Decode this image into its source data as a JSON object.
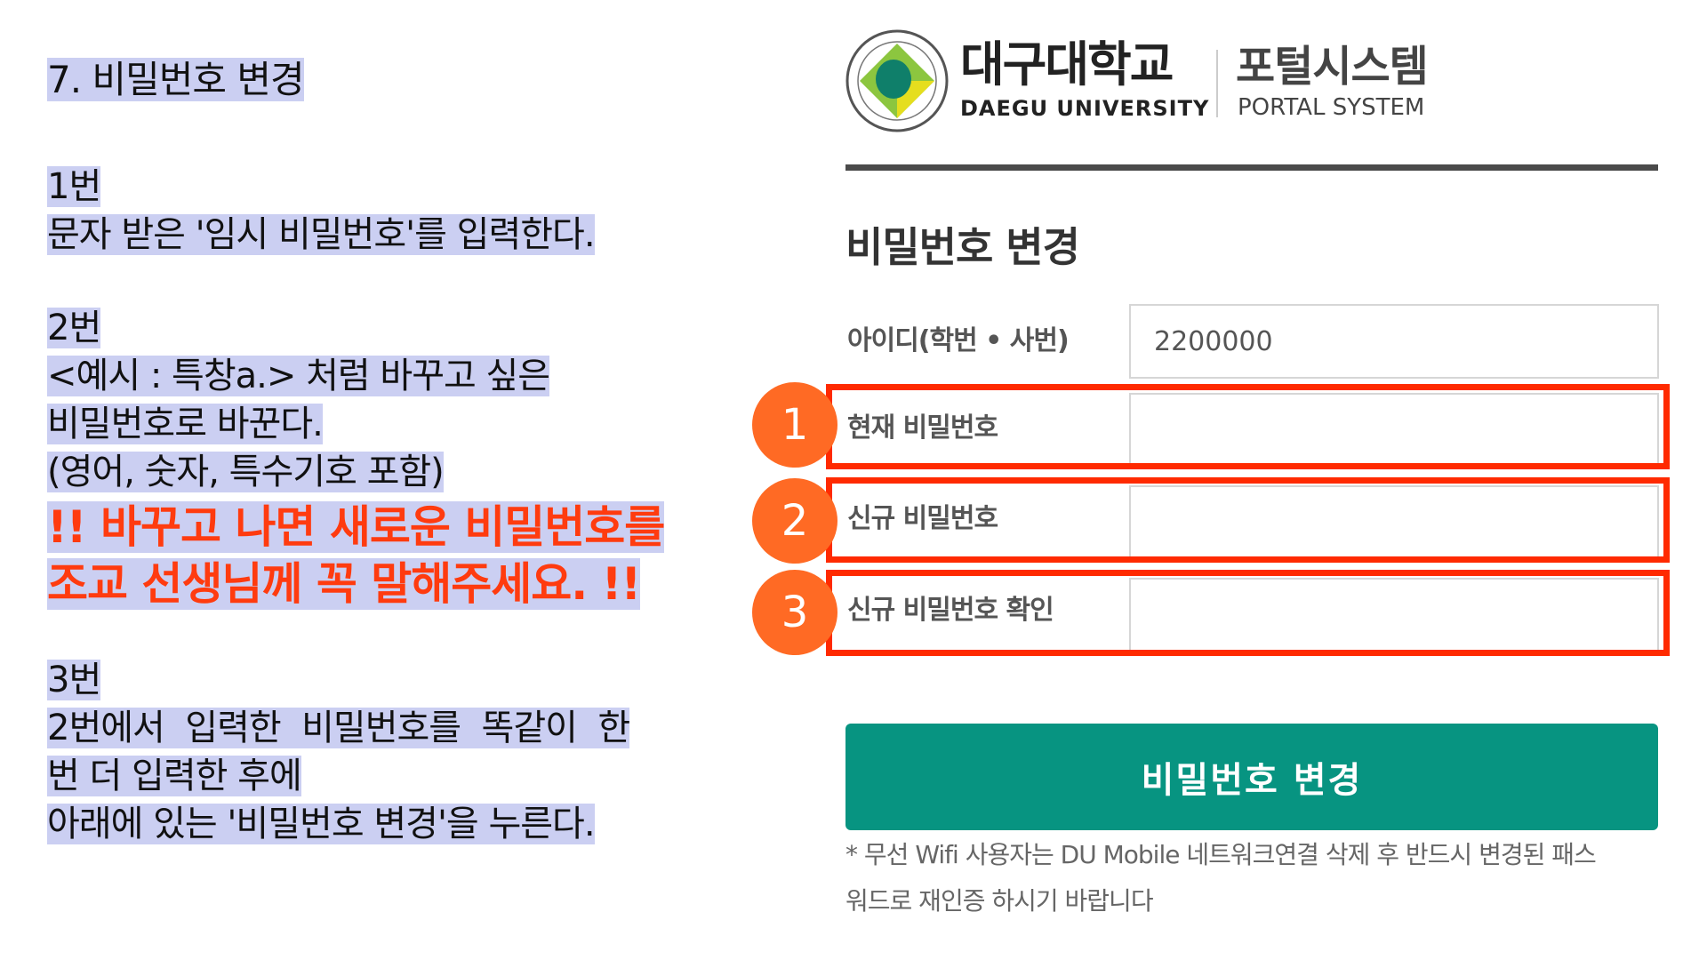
{
  "instructions": {
    "title": "7. 비밀번호 변경",
    "step1_label": "1번",
    "step1_text": "문자 받은 '임시 비밀번호'를 입력한다.",
    "step2_label": "2번",
    "step2_lines": [
      "<예시 : 특창a.> 처럼 바꾸고 싶은",
      "비밀번호로 바꾼다.",
      "(영어, 숫자, 특수기호 포함)"
    ],
    "warning_lines": [
      "!! 바꾸고 나면 새로운 비밀번호를",
      "조교 선생님께 꼭 말해주세요. !!"
    ],
    "step3_label": "3번",
    "step3_lines": [
      "2번에서  입력한  비밀번호를  똑같이  한",
      "번 더 입력한 후에",
      "아래에 있는 '비밀번호 변경'을 누른다."
    ]
  },
  "logo": {
    "name_kr": "대구대학교",
    "name_en": "DAEGU UNIVERSITY",
    "system_kr": "포털시스템",
    "system_en": "PORTAL SYSTEM"
  },
  "form": {
    "heading": "비밀번호 변경",
    "id_label": "아이디(학번 • 사번)",
    "id_value": "2200000",
    "current_label": "현재 비밀번호",
    "new_label": "신규 비밀번호",
    "confirm_label": "신규 비밀번호 확인",
    "submit_label": "비밀번호 변경",
    "note_lines": [
      "* 무선 Wifi 사용자는 DU Mobile 네트워크연결 삭제 후 반드시 변경된 패스",
      "워드로 재인증 하시기 바랍니다"
    ]
  },
  "markers": [
    "1",
    "2",
    "3"
  ],
  "colors": {
    "highlight": "#cbcff2",
    "warning": "#ff3b0f",
    "marker": "#ff6a24",
    "box": "#ff2a00",
    "button": "#079481"
  }
}
